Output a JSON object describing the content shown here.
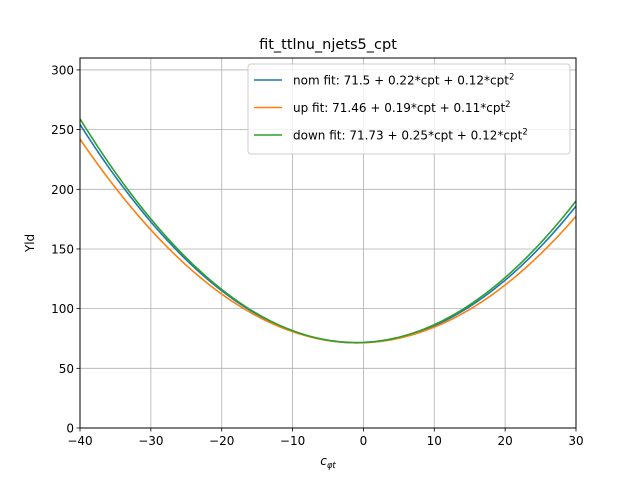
{
  "chart_data": {
    "type": "line",
    "title": "fit_ttlnu_njets5_cpt",
    "xlabel": "c",
    "xlabel_sub": "φt",
    "ylabel": "Yld",
    "xlim": [
      -40,
      30
    ],
    "ylim": [
      0,
      310
    ],
    "xticks": [
      -40,
      -30,
      -20,
      -10,
      0,
      10,
      20,
      30
    ],
    "yticks": [
      0,
      50,
      100,
      150,
      200,
      250,
      300
    ],
    "xtick_labels": [
      "−40",
      "−30",
      "−20",
      "−10",
      "0",
      "10",
      "20",
      "30"
    ],
    "ytick_labels": [
      "0",
      "50",
      "100",
      "150",
      "200",
      "250",
      "300"
    ],
    "grid": true,
    "legend_position": "top-right",
    "series": [
      {
        "name": "nom fit: 71.5 + 0.22*cpt + 0.12*cpt",
        "sup": "2",
        "color": "#1f77b4",
        "coeffs": [
          71.5,
          0.22,
          0.1198
        ]
      },
      {
        "name": "up fit: 71.46 + 0.19*cpt + 0.11*cpt",
        "sup": "2",
        "color": "#ff7f0e",
        "coeffs": [
          71.46,
          0.19,
          0.1114
        ]
      },
      {
        "name": "down fit: 71.73 + 0.25*cpt + 0.12*cpt",
        "sup": "2",
        "color": "#2ca02c",
        "coeffs": [
          71.73,
          0.25,
          0.1233
        ]
      }
    ]
  }
}
